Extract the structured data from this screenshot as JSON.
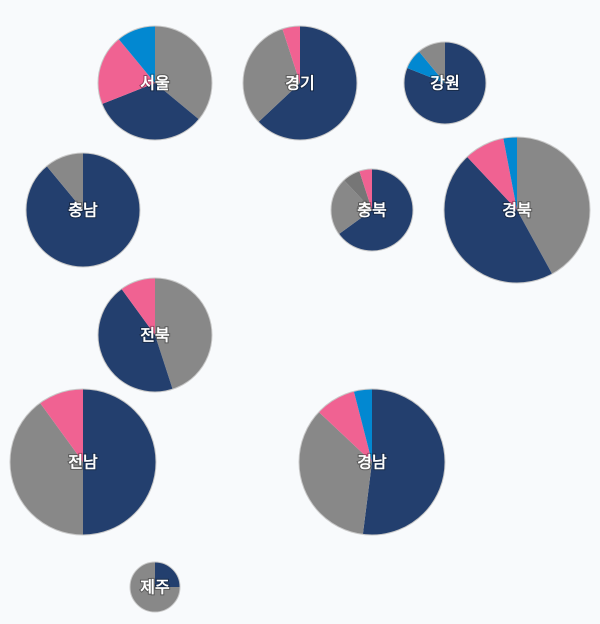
{
  "chart_data": {
    "type": "pie",
    "series_colors": [
      "#888888",
      "#233f6e",
      "#f06292",
      "#0288d1"
    ],
    "regions": [
      {
        "label": "서울",
        "values": [
          36,
          33,
          20,
          11
        ]
      },
      {
        "label": "경기",
        "values": [
          0,
          63,
          0,
          0,
          32,
          5
        ],
        "colors": [
          "#888888",
          "#233f6e",
          "#f06292",
          "#0288d1",
          "#888888",
          "#f06292"
        ]
      },
      {
        "label": "강원",
        "values": [
          0,
          81,
          0,
          8,
          11,
          0
        ],
        "colors": [
          "#888888",
          "#233f6e",
          "#f06292",
          "#0288d1",
          "#888888",
          "#f06292"
        ]
      },
      {
        "label": "충남",
        "values": [
          0,
          89,
          0,
          0,
          11,
          0
        ],
        "colors": [
          "#888888",
          "#233f6e",
          "#f06292",
          "#0288d1",
          "#888888",
          "#f06292"
        ]
      },
      {
        "label": "충북",
        "values": [
          0,
          65,
          0,
          0,
          23,
          7,
          5
        ],
        "colors": [
          "#888888",
          "#233f6e",
          "#f06292",
          "#0288d1",
          "#888888",
          "#767676",
          "#f06292"
        ]
      },
      {
        "label": "경북",
        "values": [
          42,
          46,
          9,
          3
        ]
      },
      {
        "label": "전북",
        "values": [
          45,
          45,
          10,
          0
        ]
      },
      {
        "label": "전남",
        "values": [
          0,
          50,
          0,
          0,
          40,
          10
        ],
        "colors": [
          "#888888",
          "#233f6e",
          "#f06292",
          "#0288d1",
          "#888888",
          "#f06292"
        ]
      },
      {
        "label": "경남",
        "values": [
          0,
          52,
          0,
          0,
          35,
          9,
          4
        ],
        "colors": [
          "#888888",
          "#233f6e",
          "#f06292",
          "#0288d1",
          "#888888",
          "#f06292",
          "#0288d1"
        ]
      },
      {
        "label": "제주",
        "values": [
          0,
          25,
          0,
          0,
          75,
          0
        ],
        "colors": [
          "#888888",
          "#233f6e",
          "#f06292",
          "#0288d1",
          "#888888",
          "#f06292"
        ]
      }
    ]
  }
}
